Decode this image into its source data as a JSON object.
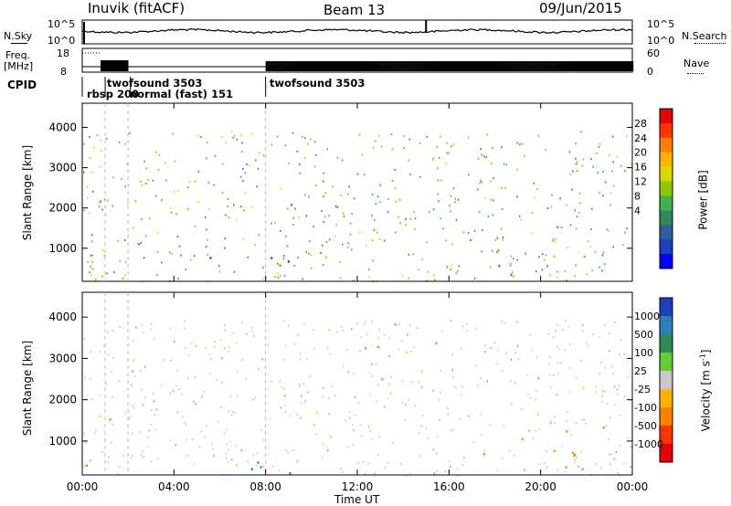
{
  "header": {
    "station": "Inuvik (fitACF)",
    "beam": "Beam 13",
    "date": "09/Jun/2015"
  },
  "top_panels": {
    "nsky_label": "N.Sky",
    "nsky_ticks": [
      "10^5",
      "10^0"
    ],
    "nsearch_label": "N.Search",
    "nsearch_ticks": [
      "10^5",
      "10^0"
    ],
    "freq_label": "Freq.",
    "freq_unit": "[MHz]",
    "freq_ticks": [
      "18",
      "8"
    ],
    "nave_label": "Nave",
    "nave_ticks": [
      "60",
      "0"
    ],
    "cpid_label": "CPID",
    "cpid_entries": [
      {
        "name": "rbsp 200",
        "start": 0.3
      },
      {
        "name": "twofsound 3503",
        "start": 1.0
      },
      {
        "name": "normal (fast) 151",
        "start": 2.1
      },
      {
        "name": "twofsound 3503",
        "start": 8.0
      }
    ]
  },
  "x_axis": {
    "label": "Time UT",
    "ticks": [
      "00:00",
      "04:00",
      "08:00",
      "12:00",
      "16:00",
      "20:00",
      "00:00"
    ]
  },
  "chart_data": [
    {
      "type": "heatmap",
      "parameter": "Power",
      "ylabel": "Slant Range [km]",
      "yticks": [
        1000,
        2000,
        3000,
        4000
      ],
      "ylim": [
        180,
        4600
      ],
      "xlim_hours": [
        0,
        24
      ],
      "colorbar": {
        "label": "Power [dB]",
        "ticks": [
          "28",
          "24",
          "20",
          "16",
          "12",
          "8",
          "4"
        ],
        "colors": [
          "#e60000",
          "#ff3300",
          "#ff7f00",
          "#ffb300",
          "#d9d900",
          "#8fc800",
          "#3cb44b",
          "#2e8b57",
          "#2c5f9e",
          "#1f3fbf",
          "#0000ff"
        ]
      },
      "scatter_regions": [
        {
          "t": [
            0.1,
            1.0
          ],
          "r": [
            1500,
            2900
          ],
          "level": 16
        },
        {
          "t": [
            1.5,
            3.0
          ],
          "r": [
            1900,
            2500
          ],
          "level": 20
        },
        {
          "t": [
            3.0,
            4.5
          ],
          "r": [
            1700,
            2300
          ],
          "level": 22
        },
        {
          "t": [
            4.5,
            6.0
          ],
          "r": [
            1900,
            2500
          ],
          "level": 18
        },
        {
          "t": [
            6.0,
            7.8
          ],
          "r": [
            1900,
            2400
          ],
          "level": 20
        },
        {
          "t": [
            5.0,
            10.5
          ],
          "r": [
            200,
            800
          ],
          "level": 26
        },
        {
          "t": [
            9.0,
            12.0
          ],
          "r": [
            1500,
            2400
          ],
          "level": 14
        },
        {
          "t": [
            12.5,
            15.5
          ],
          "r": [
            1600,
            2600
          ],
          "level": 16
        },
        {
          "t": [
            15.0,
            19.0
          ],
          "r": [
            200,
            700
          ],
          "level": 28
        },
        {
          "t": [
            18.0,
            22.5
          ],
          "r": [
            300,
            1100
          ],
          "level": 26
        },
        {
          "t": [
            0.0,
            3.0
          ],
          "r": [
            200,
            700
          ],
          "level": 24
        }
      ]
    },
    {
      "type": "heatmap",
      "parameter": "Velocity",
      "ylabel": "Slant Range [km]",
      "yticks": [
        1000,
        2000,
        3000,
        4000
      ],
      "ylim": [
        180,
        4600
      ],
      "xlim_hours": [
        0,
        24
      ],
      "colorbar": {
        "label": "Velocity [m s^-1]",
        "ticks": [
          "1000",
          "500",
          "100",
          "25",
          "-25",
          "-100",
          "-500",
          "-1000"
        ],
        "colors": [
          "#1f3fbf",
          "#2c7fb8",
          "#2e8b57",
          "#66cc33",
          "#c8c8c8",
          "#ffb300",
          "#ff7f00",
          "#ff3300",
          "#e60000"
        ]
      },
      "scatter_regions": [
        {
          "t": [
            0.1,
            1.5
          ],
          "r": [
            400,
            1800
          ],
          "level": -100
        },
        {
          "t": [
            2.0,
            8.0
          ],
          "r": [
            1800,
            2600
          ],
          "level": 0
        },
        {
          "t": [
            5.0,
            10.5
          ],
          "r": [
            200,
            800
          ],
          "level": 200
        },
        {
          "t": [
            8.0,
            16.0
          ],
          "r": [
            1500,
            2700
          ],
          "level": 0
        },
        {
          "t": [
            12.0,
            16.0
          ],
          "r": [
            2500,
            3400
          ],
          "level": -150
        },
        {
          "t": [
            16.5,
            24.0
          ],
          "r": [
            200,
            1400
          ],
          "level": -300
        }
      ]
    }
  ]
}
